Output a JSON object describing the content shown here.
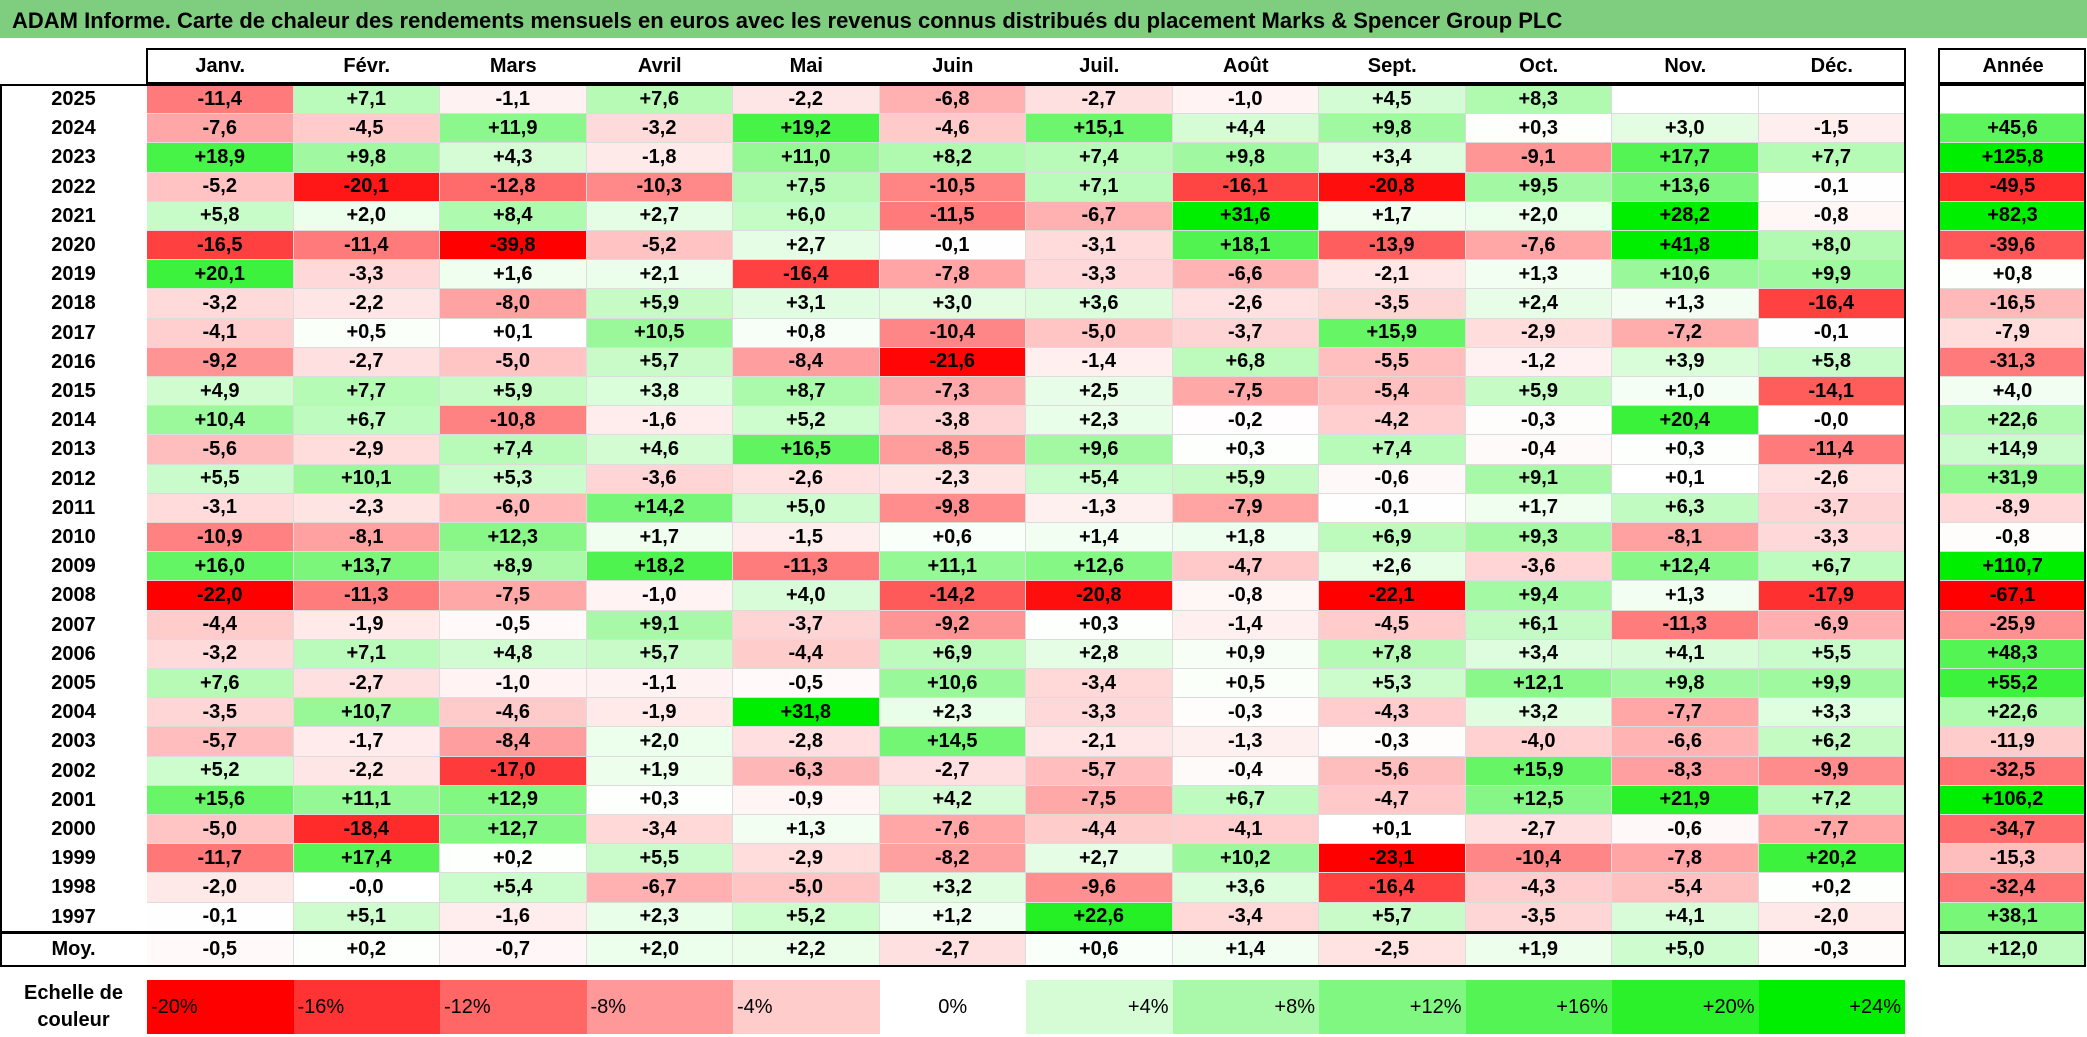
{
  "title": "ADAM Informe. Carte de chaleur des rendements mensuels en euros avec les revenus connus distribués du placement Marks & Spencer Group PLC",
  "chart_data": {
    "type": "heatmap",
    "columns": [
      "Janv.",
      "Févr.",
      "Mars",
      "Avril",
      "Mai",
      "Juin",
      "Juil.",
      "Août",
      "Sept.",
      "Oct.",
      "Nov.",
      "Déc."
    ],
    "year_column": "Année",
    "rows": [
      {
        "year": "2025",
        "values": [
          "-11,4",
          "+7,1",
          "-1,1",
          "+7,6",
          "-2,2",
          "-6,8",
          "-2,7",
          "-1,0",
          "+4,5",
          "+8,3",
          "",
          ""
        ],
        "annual": ""
      },
      {
        "year": "2024",
        "values": [
          "-7,6",
          "-4,5",
          "+11,9",
          "-3,2",
          "+19,2",
          "-4,6",
          "+15,1",
          "+4,4",
          "+9,8",
          "+0,3",
          "+3,0",
          "-1,5"
        ],
        "annual": "+45,6"
      },
      {
        "year": "2023",
        "values": [
          "+18,9",
          "+9,8",
          "+4,3",
          "-1,8",
          "+11,0",
          "+8,2",
          "+7,4",
          "+9,8",
          "+3,4",
          "-9,1",
          "+17,7",
          "+7,7"
        ],
        "annual": "+125,8"
      },
      {
        "year": "2022",
        "values": [
          "-5,2",
          "-20,1",
          "-12,8",
          "-10,3",
          "+7,5",
          "-10,5",
          "+7,1",
          "-16,1",
          "-20,8",
          "+9,5",
          "+13,6",
          "-0,1"
        ],
        "annual": "-49,5"
      },
      {
        "year": "2021",
        "values": [
          "+5,8",
          "+2,0",
          "+8,4",
          "+2,7",
          "+6,0",
          "-11,5",
          "-6,7",
          "+31,6",
          "+1,7",
          "+2,0",
          "+28,2",
          "-0,8"
        ],
        "annual": "+82,3"
      },
      {
        "year": "2020",
        "values": [
          "-16,5",
          "-11,4",
          "-39,8",
          "-5,2",
          "+2,7",
          "-0,1",
          "-3,1",
          "+18,1",
          "-13,9",
          "-7,6",
          "+41,8",
          "+8,0"
        ],
        "annual": "-39,6"
      },
      {
        "year": "2019",
        "values": [
          "+20,1",
          "-3,3",
          "+1,6",
          "+2,1",
          "-16,4",
          "-7,8",
          "-3,3",
          "-6,6",
          "-2,1",
          "+1,3",
          "+10,6",
          "+9,9"
        ],
        "annual": "+0,8"
      },
      {
        "year": "2018",
        "values": [
          "-3,2",
          "-2,2",
          "-8,0",
          "+5,9",
          "+3,1",
          "+3,0",
          "+3,6",
          "-2,6",
          "-3,5",
          "+2,4",
          "+1,3",
          "-16,4"
        ],
        "annual": "-16,5"
      },
      {
        "year": "2017",
        "values": [
          "-4,1",
          "+0,5",
          "+0,1",
          "+10,5",
          "+0,8",
          "-10,4",
          "-5,0",
          "-3,7",
          "+15,9",
          "-2,9",
          "-7,2",
          "-0,1"
        ],
        "annual": "-7,9"
      },
      {
        "year": "2016",
        "values": [
          "-9,2",
          "-2,7",
          "-5,0",
          "+5,7",
          "-8,4",
          "-21,6",
          "-1,4",
          "+6,8",
          "-5,5",
          "-1,2",
          "+3,9",
          "+5,8"
        ],
        "annual": "-31,3"
      },
      {
        "year": "2015",
        "values": [
          "+4,9",
          "+7,7",
          "+5,9",
          "+3,8",
          "+8,7",
          "-7,3",
          "+2,5",
          "-7,5",
          "-5,4",
          "+5,9",
          "+1,0",
          "-14,1"
        ],
        "annual": "+4,0"
      },
      {
        "year": "2014",
        "values": [
          "+10,4",
          "+6,7",
          "-10,8",
          "-1,6",
          "+5,2",
          "-3,8",
          "+2,3",
          "-0,2",
          "-4,2",
          "-0,3",
          "+20,4",
          "-0,0"
        ],
        "annual": "+22,6"
      },
      {
        "year": "2013",
        "values": [
          "-5,6",
          "-2,9",
          "+7,4",
          "+4,6",
          "+16,5",
          "-8,5",
          "+9,6",
          "+0,3",
          "+7,4",
          "-0,4",
          "+0,3",
          "-11,4"
        ],
        "annual": "+14,9"
      },
      {
        "year": "2012",
        "values": [
          "+5,5",
          "+10,1",
          "+5,3",
          "-3,6",
          "-2,6",
          "-2,3",
          "+5,4",
          "+5,9",
          "-0,6",
          "+9,1",
          "+0,1",
          "-2,6"
        ],
        "annual": "+31,9"
      },
      {
        "year": "2011",
        "values": [
          "-3,1",
          "-2,3",
          "-6,0",
          "+14,2",
          "+5,0",
          "-9,8",
          "-1,3",
          "-7,9",
          "-0,1",
          "+1,7",
          "+6,3",
          "-3,7"
        ],
        "annual": "-8,9"
      },
      {
        "year": "2010",
        "values": [
          "-10,9",
          "-8,1",
          "+12,3",
          "+1,7",
          "-1,5",
          "+0,6",
          "+1,4",
          "+1,8",
          "+6,9",
          "+9,3",
          "-8,1",
          "-3,3"
        ],
        "annual": "-0,8"
      },
      {
        "year": "2009",
        "values": [
          "+16,0",
          "+13,7",
          "+8,9",
          "+18,2",
          "-11,3",
          "+11,1",
          "+12,6",
          "-4,7",
          "+2,6",
          "-3,6",
          "+12,4",
          "+6,7"
        ],
        "annual": "+110,7"
      },
      {
        "year": "2008",
        "values": [
          "-22,0",
          "-11,3",
          "-7,5",
          "-1,0",
          "+4,0",
          "-14,2",
          "-20,8",
          "-0,8",
          "-22,1",
          "+9,4",
          "+1,3",
          "-17,9"
        ],
        "annual": "-67,1"
      },
      {
        "year": "2007",
        "values": [
          "-4,4",
          "-1,9",
          "-0,5",
          "+9,1",
          "-3,7",
          "-9,2",
          "+0,3",
          "-1,4",
          "-4,5",
          "+6,1",
          "-11,3",
          "-6,9"
        ],
        "annual": "-25,9"
      },
      {
        "year": "2006",
        "values": [
          "-3,2",
          "+7,1",
          "+4,8",
          "+5,7",
          "-4,4",
          "+6,9",
          "+2,8",
          "+0,9",
          "+7,8",
          "+3,4",
          "+4,1",
          "+5,5"
        ],
        "annual": "+48,3"
      },
      {
        "year": "2005",
        "values": [
          "+7,6",
          "-2,7",
          "-1,0",
          "-1,1",
          "-0,5",
          "+10,6",
          "-3,4",
          "+0,5",
          "+5,3",
          "+12,1",
          "+9,8",
          "+9,9"
        ],
        "annual": "+55,2"
      },
      {
        "year": "2004",
        "values": [
          "-3,5",
          "+10,7",
          "-4,6",
          "-1,9",
          "+31,8",
          "+2,3",
          "-3,3",
          "-0,3",
          "-4,3",
          "+3,2",
          "-7,7",
          "+3,3"
        ],
        "annual": "+22,6"
      },
      {
        "year": "2003",
        "values": [
          "-5,7",
          "-1,7",
          "-8,4",
          "+2,0",
          "-2,8",
          "+14,5",
          "-2,1",
          "-1,3",
          "-0,3",
          "-4,0",
          "-6,6",
          "+6,2"
        ],
        "annual": "-11,9"
      },
      {
        "year": "2002",
        "values": [
          "+5,2",
          "-2,2",
          "-17,0",
          "+1,9",
          "-6,3",
          "-2,7",
          "-5,7",
          "-0,4",
          "-5,6",
          "+15,9",
          "-8,3",
          "-9,9"
        ],
        "annual": "-32,5"
      },
      {
        "year": "2001",
        "values": [
          "+15,6",
          "+11,1",
          "+12,9",
          "+0,3",
          "-0,9",
          "+4,2",
          "-7,5",
          "+6,7",
          "-4,7",
          "+12,5",
          "+21,9",
          "+7,2"
        ],
        "annual": "+106,2"
      },
      {
        "year": "2000",
        "values": [
          "-5,0",
          "-18,4",
          "+12,7",
          "-3,4",
          "+1,3",
          "-7,6",
          "-4,4",
          "-4,1",
          "+0,1",
          "-2,7",
          "-0,6",
          "-7,7"
        ],
        "annual": "-34,7"
      },
      {
        "year": "1999",
        "values": [
          "-11,7",
          "+17,4",
          "+0,2",
          "+5,5",
          "-2,9",
          "-8,2",
          "+2,7",
          "+10,2",
          "-23,1",
          "-10,4",
          "-7,8",
          "+20,2"
        ],
        "annual": "-15,3"
      },
      {
        "year": "1998",
        "values": [
          "-2,0",
          "-0,0",
          "+5,4",
          "-6,7",
          "-5,0",
          "+3,2",
          "-9,6",
          "+3,6",
          "-16,4",
          "-4,3",
          "-5,4",
          "+0,2"
        ],
        "annual": "-32,4"
      },
      {
        "year": "1997",
        "values": [
          "-0,1",
          "+5,1",
          "-1,6",
          "+2,3",
          "+5,2",
          "+1,2",
          "+22,6",
          "-3,4",
          "+5,7",
          "-3,5",
          "+4,1",
          "-2,0"
        ],
        "annual": "+38,1"
      }
    ],
    "average": {
      "label": "Moy.",
      "values": [
        "-0,5",
        "+0,2",
        "-0,7",
        "+2,0",
        "+2,2",
        "-2,7",
        "+0,6",
        "+1,4",
        "-2,5",
        "+1,9",
        "+5,0",
        "-0,3"
      ],
      "annual": "+12,0"
    },
    "legend": {
      "label": "Echelle de couleur",
      "steps": [
        "-20%",
        "-16%",
        "-12%",
        "-8%",
        "-4%",
        "0%",
        "+4%",
        "+8%",
        "+12%",
        "+16%",
        "+20%",
        "+24%"
      ],
      "step_values": [
        -20,
        -16,
        -12,
        -8,
        -4,
        0,
        4,
        8,
        12,
        16,
        20,
        24
      ]
    }
  },
  "colors": {
    "title_bar": "#7fce7f",
    "negative_max": "#ff0000",
    "neutral": "#ffffff",
    "positive_max": "#00ee00"
  }
}
